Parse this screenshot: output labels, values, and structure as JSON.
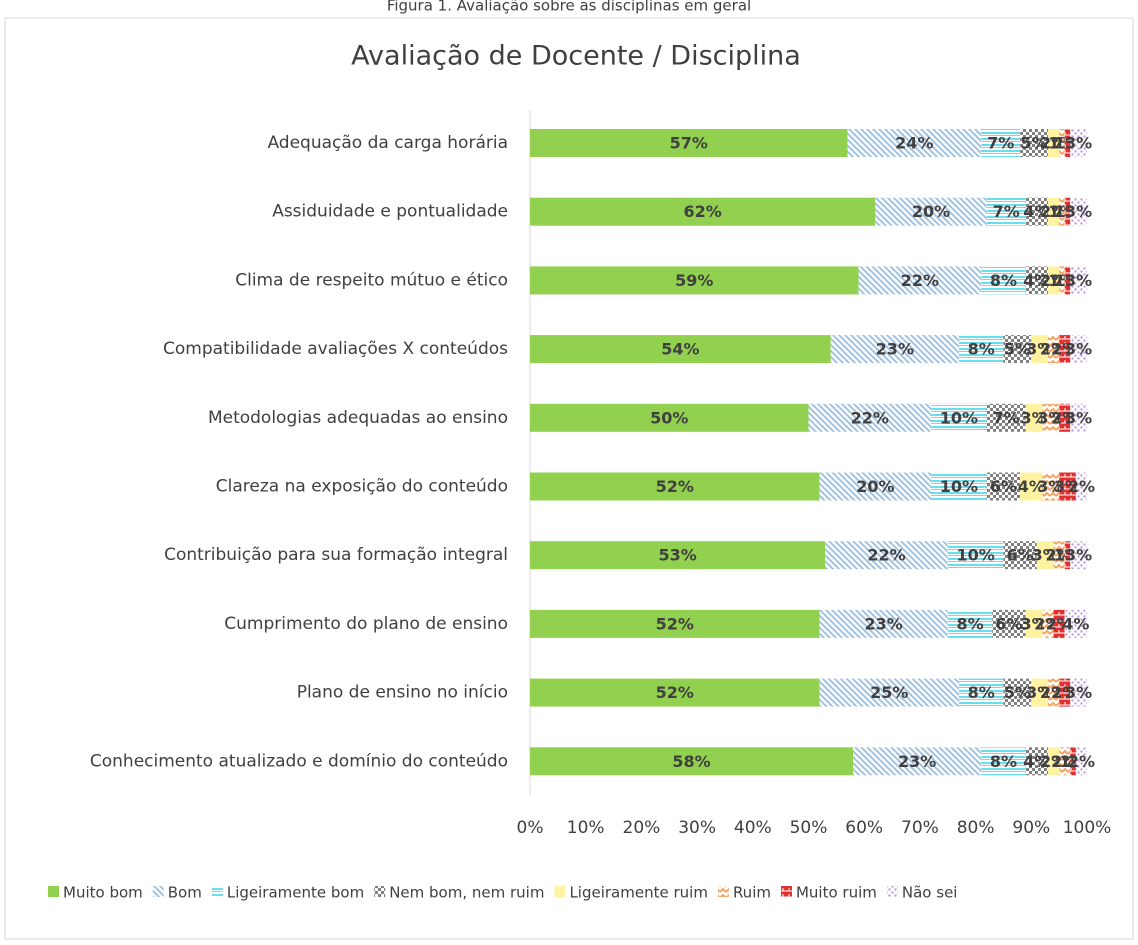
{
  "caption": "Figura 1. Avaliação sobre as disciplinas em geral",
  "chart_data": {
    "type": "stacked_barh",
    "title": "Avaliação de Docente / Disciplina",
    "categories": [
      "Adequação da carga horária",
      "Assiduidade e pontualidade",
      "Clima de respeito mútuo e ético",
      "Compatibilidade avaliações X conteúdos",
      "Metodologias adequadas ao ensino",
      "Clareza na exposição do conteúdo",
      "Contribuição para sua formação integral",
      "Cumprimento do plano de ensino",
      "Plano de ensino no início",
      "Conhecimento atualizado e domínio do conteúdo"
    ],
    "series": [
      {
        "name": "Muito bom",
        "color": "#92d050",
        "values": [
          57,
          62,
          59,
          54,
          50,
          52,
          53,
          52,
          52,
          58
        ],
        "value_labels": [
          "57%",
          "62%",
          "59%",
          "54%",
          "50%",
          "52%",
          "53%",
          "52%",
          "52%",
          "58%"
        ]
      },
      {
        "name": "Bom",
        "color": "#9dc3e6",
        "values": [
          24,
          20,
          22,
          23,
          22,
          20,
          22,
          23,
          25,
          23
        ],
        "value_labels": [
          "24%",
          "20%",
          "22%",
          "23%",
          "22%",
          "20%",
          "22%",
          "23%",
          "25%",
          "23%"
        ]
      },
      {
        "name": "Ligeiramente bom",
        "color": "#66e0ee",
        "values": [
          7,
          7,
          8,
          8,
          10,
          10,
          10,
          8,
          8,
          8
        ],
        "value_labels": [
          "7%",
          "7%",
          "8%",
          "8%",
          "10%",
          "10%",
          "10%",
          "8%",
          "8%",
          "8%"
        ]
      },
      {
        "name": "Nem bom, nem ruim",
        "color": "#808080",
        "values": [
          5,
          4,
          4,
          5,
          7,
          6,
          6,
          6,
          5,
          4
        ],
        "value_labels": [
          "5%",
          "4%",
          "4%",
          "5%",
          "7%",
          "6%",
          "6%",
          "6%",
          "5%",
          "4%"
        ]
      },
      {
        "name": "Ligeiramente ruim",
        "color": "#fff2a0",
        "values": [
          2,
          2,
          2,
          3,
          3,
          4,
          3,
          3,
          3,
          2
        ],
        "value_labels": [
          "2%",
          "2%",
          "2%",
          "3%",
          "3%",
          "4%",
          "3%",
          "3%",
          "3%",
          "2%"
        ]
      },
      {
        "name": "Ruim",
        "color": "#f4a460",
        "values": [
          1,
          1,
          1,
          2,
          3,
          3,
          2,
          2,
          2,
          2
        ],
        "value_labels": [
          "1%",
          "1%",
          "1%",
          "2%",
          "3%",
          "3%",
          "2%",
          "2%",
          "2%",
          "2%"
        ]
      },
      {
        "name": "Muito ruim",
        "color": "#e03030",
        "values": [
          1,
          1,
          1,
          2,
          2,
          3,
          1,
          2,
          2,
          1
        ],
        "value_labels": [
          "1%",
          "1%",
          "1%",
          "2%",
          "2%",
          "3%",
          "1%",
          "2%",
          "2%",
          "1%"
        ]
      },
      {
        "name": "Não sei",
        "color": "#c39be0",
        "values": [
          3,
          3,
          3,
          3,
          3,
          2,
          3,
          4,
          3,
          2
        ],
        "value_labels": [
          "3%",
          "3%",
          "3%",
          "3%",
          "3%",
          "2%",
          "3%",
          "4%",
          "3%",
          "2%"
        ]
      }
    ],
    "xlim": [
      0,
      100
    ],
    "xticks": [
      {
        "value": 0,
        "label": "0%"
      },
      {
        "value": 10,
        "label": "10%"
      },
      {
        "value": 20,
        "label": "20%"
      },
      {
        "value": 30,
        "label": "30%"
      },
      {
        "value": 40,
        "label": "40%"
      },
      {
        "value": 50,
        "label": "50%"
      },
      {
        "value": 60,
        "label": "60%"
      },
      {
        "value": 70,
        "label": "70%"
      },
      {
        "value": 80,
        "label": "80%"
      },
      {
        "value": 90,
        "label": "90%"
      },
      {
        "value": 100,
        "label": "100%"
      }
    ],
    "legend": "bottom"
  }
}
